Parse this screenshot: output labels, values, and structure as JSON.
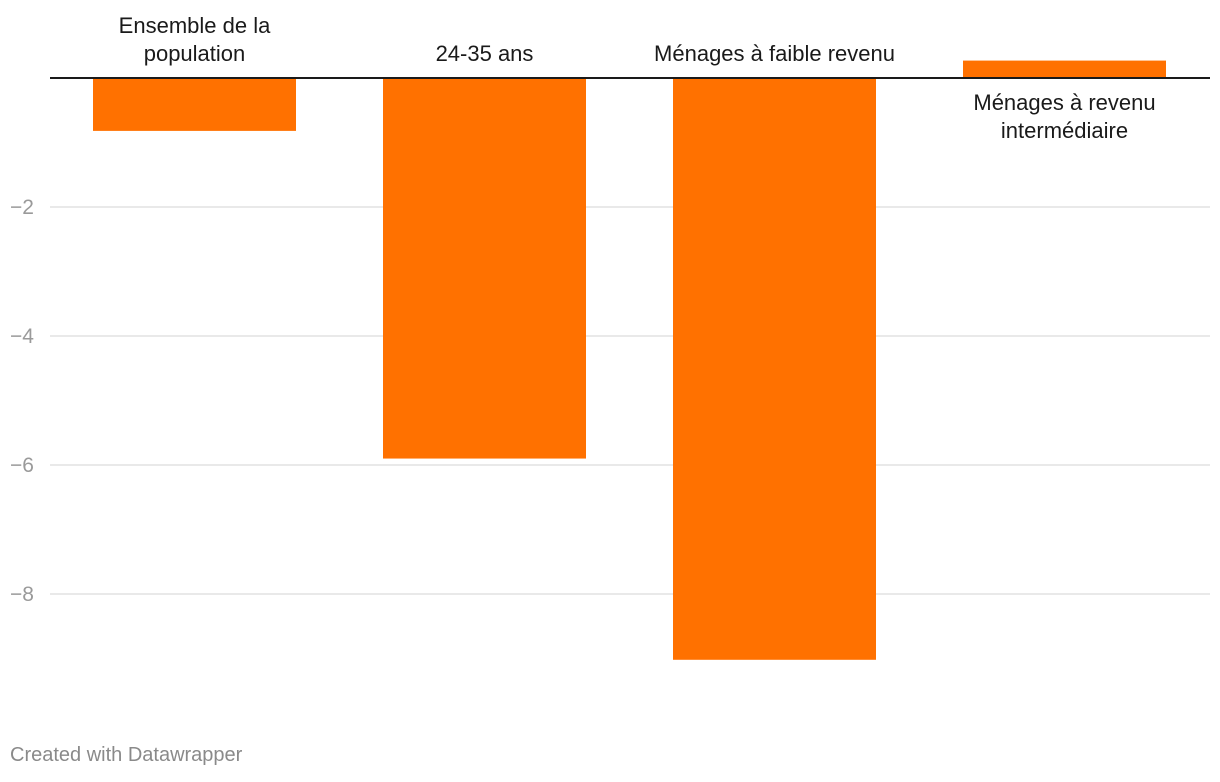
{
  "chart_data": {
    "type": "bar",
    "categories": [
      [
        "Ensemble de la",
        "population"
      ],
      [
        "24-35 ans"
      ],
      [
        "Ménages à faible revenu"
      ],
      [
        "Ménages à revenu",
        "intermédiaire"
      ]
    ],
    "values": [
      -0.82,
      -5.9,
      -9.02,
      0.27
    ],
    "ylim": [
      -10,
      0.5
    ],
    "yticks": [
      -2,
      -4,
      -6,
      -8
    ],
    "ytick_labels": [
      "−2",
      "−4",
      "−6",
      "−8"
    ],
    "grid": true,
    "title": "",
    "xlabel": "",
    "ylabel": "",
    "bar_color": "#ff7100",
    "grid_color": "#e2e2e2",
    "axis_color": "#1a1a1a"
  },
  "footer": {
    "credit": "Created with Datawrapper"
  }
}
